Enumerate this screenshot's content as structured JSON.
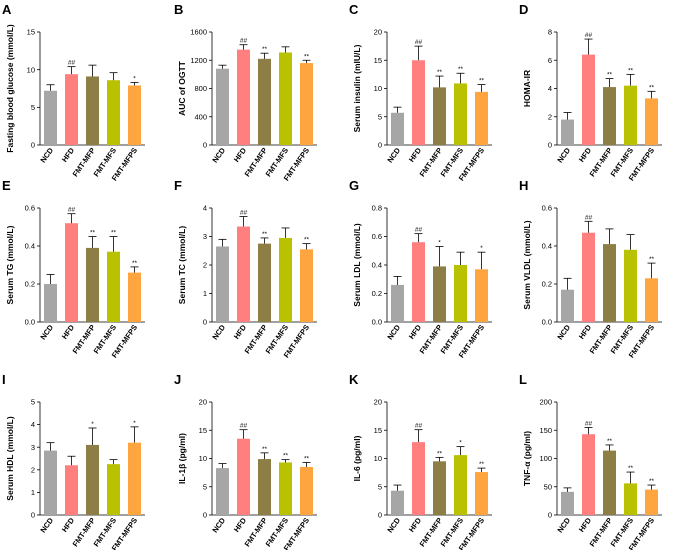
{
  "colors": {
    "NCD": "#a6a6a6",
    "HFD": "#ff7f7f",
    "FMT-MFP": "#8c7e45",
    "FMT-MFS": "#b9c200",
    "FMT-MFPS": "#ffa53f"
  },
  "chart_data": [
    {
      "panel": "A",
      "type": "bar",
      "ylabel": "Fasting blood glucose (mmol/L)",
      "ylim": [
        0,
        15
      ],
      "yticks": [
        0,
        5,
        10,
        15
      ],
      "categories": [
        "NCD",
        "HFD",
        "FMT-MFP",
        "FMT-MFS",
        "FMT-MFPS"
      ],
      "values": [
        7.2,
        9.4,
        9.1,
        8.6,
        7.9
      ],
      "errors": [
        0.8,
        1.0,
        1.5,
        1.0,
        0.4
      ],
      "annotations": [
        "",
        "##",
        "",
        "",
        "*"
      ]
    },
    {
      "panel": "B",
      "type": "bar",
      "ylabel": "AUC of OGTT",
      "ylim": [
        0,
        1600
      ],
      "yticks": [
        0,
        400,
        800,
        1200,
        1600
      ],
      "categories": [
        "NCD",
        "HFD",
        "FMT-MFP",
        "FMT-MFS",
        "FMT-MFPS"
      ],
      "values": [
        1080,
        1350,
        1220,
        1310,
        1160
      ],
      "errors": [
        50,
        70,
        80,
        80,
        40
      ],
      "annotations": [
        "",
        "##",
        "**",
        "",
        "**"
      ]
    },
    {
      "panel": "C",
      "type": "bar",
      "ylabel": "Serum insulin (mIU/L)",
      "ylim": [
        0,
        20
      ],
      "yticks": [
        0,
        5,
        10,
        15,
        20
      ],
      "categories": [
        "NCD",
        "HFD",
        "FMT-MFP",
        "FMT-MFS",
        "FMT-MFPS"
      ],
      "values": [
        5.7,
        15.0,
        10.2,
        10.9,
        9.4
      ],
      "errors": [
        1.0,
        2.5,
        2.0,
        1.8,
        1.3
      ],
      "annotations": [
        "",
        "##",
        "**",
        "**",
        "**"
      ]
    },
    {
      "panel": "D",
      "type": "bar",
      "ylabel": "HOMA-IR",
      "ylim": [
        0,
        8
      ],
      "yticks": [
        0,
        2,
        4,
        6,
        8
      ],
      "categories": [
        "NCD",
        "HFD",
        "FMT-MFP",
        "FMT-MFS",
        "FMT-MFPS"
      ],
      "values": [
        1.8,
        6.4,
        4.1,
        4.2,
        3.3
      ],
      "errors": [
        0.5,
        1.1,
        0.6,
        0.8,
        0.5
      ],
      "annotations": [
        "",
        "##",
        "**",
        "**",
        "**"
      ]
    },
    {
      "panel": "E",
      "type": "bar",
      "ylabel": "Serum TG (mmol/L)",
      "ylim": [
        0,
        0.6
      ],
      "yticks": [
        0.0,
        0.2,
        0.4,
        0.6
      ],
      "categories": [
        "NCD",
        "HFD",
        "FMT-MFP",
        "FMT-MFS",
        "FMT-MFPS"
      ],
      "values": [
        0.2,
        0.52,
        0.39,
        0.37,
        0.26
      ],
      "errors": [
        0.05,
        0.05,
        0.06,
        0.08,
        0.03
      ],
      "annotations": [
        "",
        "##",
        "**",
        "**",
        "**"
      ]
    },
    {
      "panel": "F",
      "type": "bar",
      "ylabel": "Serum TC (mmol/L)",
      "ylim": [
        0,
        4
      ],
      "yticks": [
        0,
        1,
        2,
        3,
        4
      ],
      "categories": [
        "NCD",
        "HFD",
        "FMT-MFP",
        "FMT-MFS",
        "FMT-MFPS"
      ],
      "values": [
        2.65,
        3.35,
        2.75,
        2.95,
        2.55
      ],
      "errors": [
        0.25,
        0.35,
        0.2,
        0.35,
        0.2
      ],
      "annotations": [
        "",
        "##",
        "**",
        "",
        "**"
      ]
    },
    {
      "panel": "G",
      "type": "bar",
      "ylabel": "Serum LDL (mmol/L)",
      "ylim": [
        0,
        0.8
      ],
      "yticks": [
        0.0,
        0.2,
        0.4,
        0.6,
        0.8
      ],
      "categories": [
        "NCD",
        "HFD",
        "FMT-MFP",
        "FMT-MFS",
        "FMT-MFPS"
      ],
      "values": [
        0.26,
        0.56,
        0.39,
        0.4,
        0.37
      ],
      "errors": [
        0.06,
        0.06,
        0.14,
        0.09,
        0.12
      ],
      "annotations": [
        "",
        "##",
        "*",
        "",
        "*"
      ]
    },
    {
      "panel": "H",
      "type": "bar",
      "ylabel": "Serum VLDL (mmol/L)",
      "ylim": [
        0,
        0.6
      ],
      "yticks": [
        0.0,
        0.2,
        0.4,
        0.6
      ],
      "categories": [
        "NCD",
        "HFD",
        "FMT-MFP",
        "FMT-MFS",
        "FMT-MFPS"
      ],
      "values": [
        0.17,
        0.47,
        0.41,
        0.38,
        0.23
      ],
      "errors": [
        0.06,
        0.06,
        0.08,
        0.08,
        0.08
      ],
      "annotations": [
        "",
        "##",
        "",
        "",
        "**"
      ]
    },
    {
      "panel": "I",
      "type": "bar",
      "ylabel": "Serum HDL (mmol/L)",
      "ylim": [
        0,
        5
      ],
      "yticks": [
        0,
        1,
        2,
        3,
        4,
        5
      ],
      "categories": [
        "NCD",
        "HFD",
        "FMT-MFP",
        "FMT-MFS",
        "FMT-MFPS"
      ],
      "values": [
        2.85,
        2.2,
        3.1,
        2.25,
        3.2
      ],
      "errors": [
        0.35,
        0.4,
        0.75,
        0.2,
        0.7
      ],
      "annotations": [
        "",
        "",
        "*",
        "",
        "*"
      ]
    },
    {
      "panel": "J",
      "type": "bar",
      "ylabel": "IL-1β (pg/ml)",
      "ylim": [
        0,
        20
      ],
      "yticks": [
        0,
        5,
        10,
        15,
        20
      ],
      "categories": [
        "NCD",
        "HFD",
        "FMT-MFP",
        "FMT-MFS",
        "FMT-MFPS"
      ],
      "values": [
        8.3,
        13.5,
        9.9,
        9.3,
        8.5
      ],
      "errors": [
        0.8,
        1.6,
        1.1,
        0.5,
        0.8
      ],
      "annotations": [
        "",
        "##",
        "**",
        "**",
        "**"
      ]
    },
    {
      "panel": "K",
      "type": "bar",
      "ylabel": "IL-6 (pg/ml)",
      "ylim": [
        0,
        20
      ],
      "yticks": [
        0,
        5,
        10,
        15,
        20
      ],
      "categories": [
        "NCD",
        "HFD",
        "FMT-MFP",
        "FMT-MFS",
        "FMT-MFPS"
      ],
      "values": [
        4.3,
        12.9,
        9.5,
        10.6,
        7.6
      ],
      "errors": [
        1.0,
        2.2,
        0.7,
        1.5,
        0.7
      ],
      "annotations": [
        "",
        "##",
        "**",
        "*",
        "**"
      ]
    },
    {
      "panel": "L",
      "type": "bar",
      "ylabel": "TNF-α (pg/ml)",
      "ylim": [
        0,
        200
      ],
      "yticks": [
        0,
        50,
        100,
        150,
        200
      ],
      "categories": [
        "NCD",
        "HFD",
        "FMT-MFP",
        "FMT-MFS",
        "FMT-MFPS"
      ],
      "values": [
        41,
        143,
        114,
        56,
        45
      ],
      "errors": [
        7,
        12,
        10,
        20,
        8
      ],
      "annotations": [
        "",
        "##",
        "**",
        "**",
        "**"
      ]
    }
  ]
}
